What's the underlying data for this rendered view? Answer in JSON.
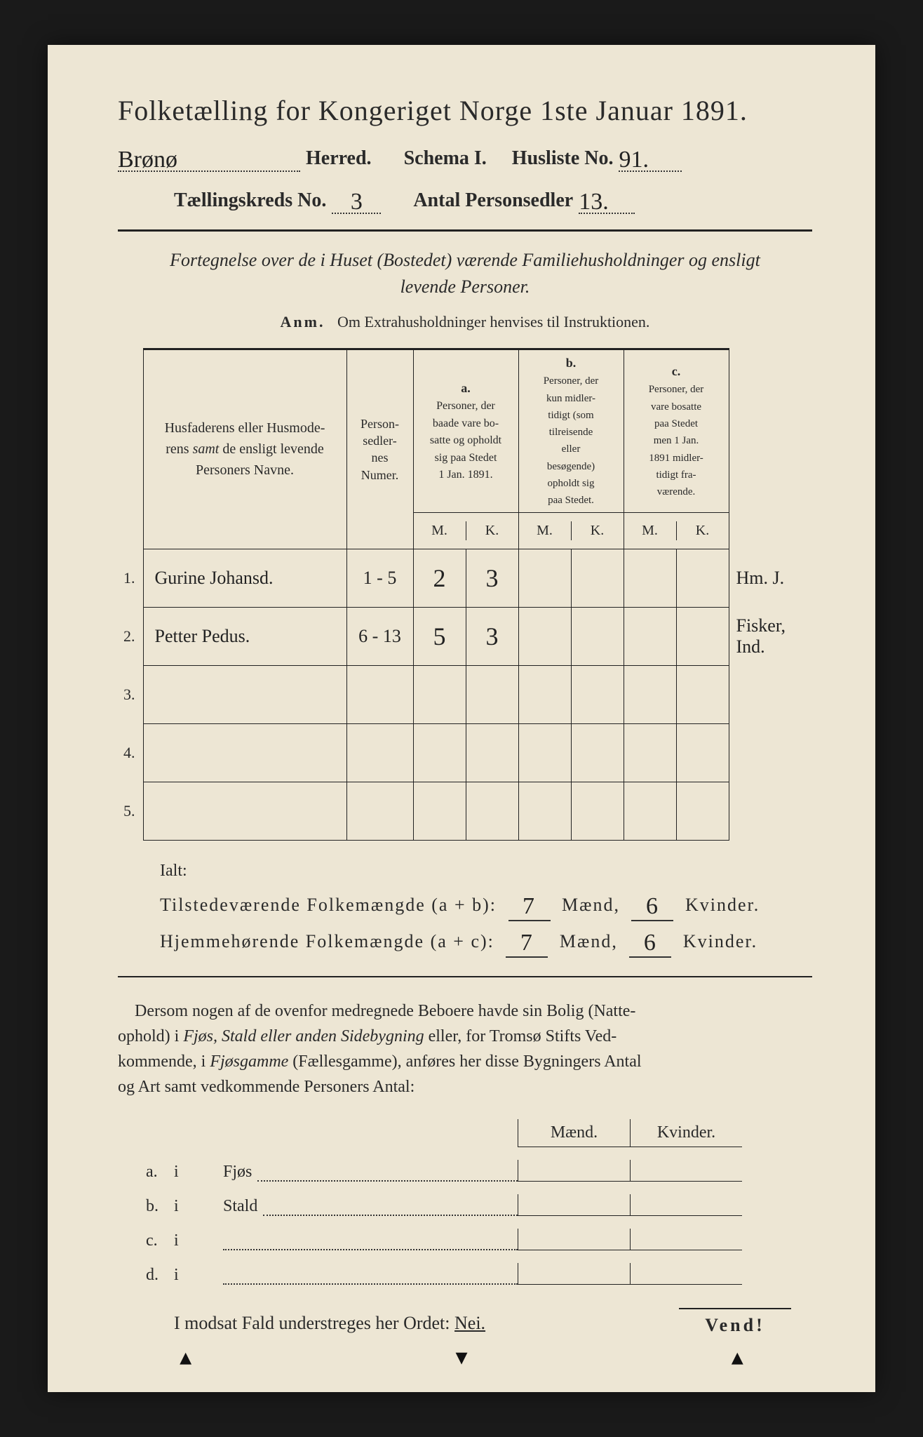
{
  "title": "Folketælling for Kongeriget Norge 1ste Januar 1891.",
  "header": {
    "herred_hand": "Brønø",
    "herred_label": "Herred.",
    "schema_label": "Schema I.",
    "husliste_label": "Husliste No.",
    "husliste_no_hand": "91.",
    "kreds_label": "Tællingskreds No.",
    "kreds_no_hand": "3",
    "antal_label": "Antal Personsedler",
    "antal_hand": "13."
  },
  "fortegn_line1": "Fortegnelse over de i Huset (Bostedet) værende Familiehusholdninger og ensligt",
  "fortegn_line2": "levende Personer.",
  "anm_label": "Anm.",
  "anm_text": "Om Extrahusholdninger henvises til Instruktionen.",
  "table": {
    "head_name": "Husfaderens eller Husmoderens samt de ensligt levende Personers Navne.",
    "head_num": "Person-sedler-nes Numer.",
    "a_label": "a.",
    "a_text": "Personer, der baade vare bosatte og opholdt sig paa Stedet 1 Jan. 1891.",
    "b_label": "b.",
    "b_text": "Personer, der kun midler-tidigt (som tilreisende eller besøgende) opholdt sig paa Stedet.",
    "c_label": "c.",
    "c_text": "Personer, der vare bosatte paa Stedet men 1 Jan. 1891 midler-tidigt fra-værende.",
    "m": "M.",
    "k": "K.",
    "rows": [
      {
        "n": "1.",
        "name": "Gurine Johansd.",
        "num": "1 - 5",
        "am": "2",
        "ak": "3",
        "bm": "",
        "bk": "",
        "cm": "",
        "ck": "",
        "note": "Hm. J."
      },
      {
        "n": "2.",
        "name": "Petter Pedus.",
        "num": "6 - 13",
        "am": "5",
        "ak": "3",
        "bm": "",
        "bk": "",
        "cm": "",
        "ck": "",
        "note": "Fisker, Ind."
      },
      {
        "n": "3.",
        "name": "",
        "num": "",
        "am": "",
        "ak": "",
        "bm": "",
        "bk": "",
        "cm": "",
        "ck": "",
        "note": ""
      },
      {
        "n": "4.",
        "name": "",
        "num": "",
        "am": "",
        "ak": "",
        "bm": "",
        "bk": "",
        "cm": "",
        "ck": "",
        "note": ""
      },
      {
        "n": "5.",
        "name": "",
        "num": "",
        "am": "",
        "ak": "",
        "bm": "",
        "bk": "",
        "cm": "",
        "ck": "",
        "note": ""
      }
    ]
  },
  "ialt": "Ialt:",
  "sum1_label": "Tilstedeværende Folkemængde (a + b):",
  "sum2_label": "Hjemmehørende Folkemængde (a + c):",
  "maend": "Mænd,",
  "kvinder": "Kvinder.",
  "sum1_m": "7",
  "sum1_k": "6",
  "sum2_m": "7",
  "sum2_k": "6",
  "dersom": "Dersom nogen af de ovenfor medregnede Beboere havde sin Bolig (Natteophold) i Fjøs, Stald eller anden Sidebygning eller, for Tromsø Stifts Vedkommende, i Fjøsgamme (Fællesgamme), anføres her disse Bygningers Antal og Art samt vedkommende Personers Antal:",
  "bolig": {
    "head_m": "Mænd.",
    "head_k": "Kvinder.",
    "a": "a.",
    "b": "b.",
    "c": "c.",
    "d": "d.",
    "i": "i",
    "fjos": "Fjøs",
    "stald": "Stald"
  },
  "modsat": "I modsat Fald understreges her Ordet:",
  "nei": "Nei.",
  "vend": "Vend!"
}
